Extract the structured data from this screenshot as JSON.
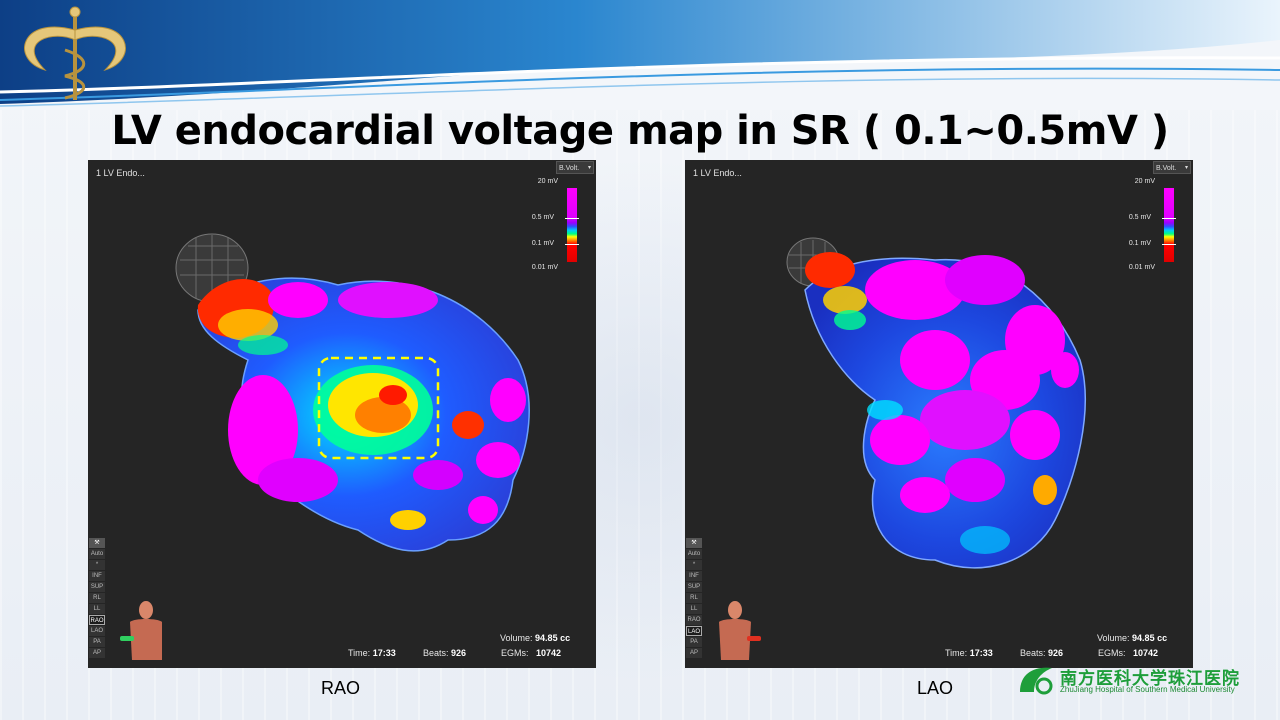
{
  "slide": {
    "title": "LV endocardial voltage map in SR ( 0.1~0.5mV )",
    "colors": {
      "header_blue": "#1e6fb8",
      "logo_green": "#1e9e3a"
    }
  },
  "panels": [
    {
      "map_name": "1 LV Endo...",
      "dropdown": "B.Volt.",
      "colorbar": {
        "max": "20 mV",
        "upper": "0.5 mV",
        "lower": "0.1 mV",
        "min": "0.01 mV"
      },
      "sidebar": [
        "Auto",
        "*",
        "INF",
        "SUP",
        "RL",
        "LL",
        "RAO",
        "LAO",
        "PA",
        "AP"
      ],
      "active_view": "RAO",
      "volume_label": "Volume:",
      "volume": "94.85 cc",
      "time_label": "Time:",
      "time": "17:33",
      "beats_label": "Beats:",
      "beats": "926",
      "egms_label": "EGMs:",
      "egms": "10742",
      "caption": "RAO"
    },
    {
      "map_name": "1 LV Endo...",
      "dropdown": "B.Volt.",
      "colorbar": {
        "max": "20 mV",
        "upper": "0.5 mV",
        "lower": "0.1 mV",
        "min": "0.01 mV"
      },
      "sidebar": [
        "Auto",
        "*",
        "INF",
        "SUP",
        "RL",
        "LL",
        "RAO",
        "LAO",
        "PA",
        "AP"
      ],
      "active_view": "LAO",
      "volume_label": "Volume:",
      "volume": "94.85 cc",
      "time_label": "Time:",
      "time": "17:33",
      "beats_label": "Beats:",
      "beats": "926",
      "egms_label": "EGMs:",
      "egms": "10742",
      "caption": "LAO"
    }
  ],
  "logo": {
    "name_cn": "南方医科大学珠江医院",
    "name_en": "ZhuJiang Hospital of Southern Medical University"
  }
}
